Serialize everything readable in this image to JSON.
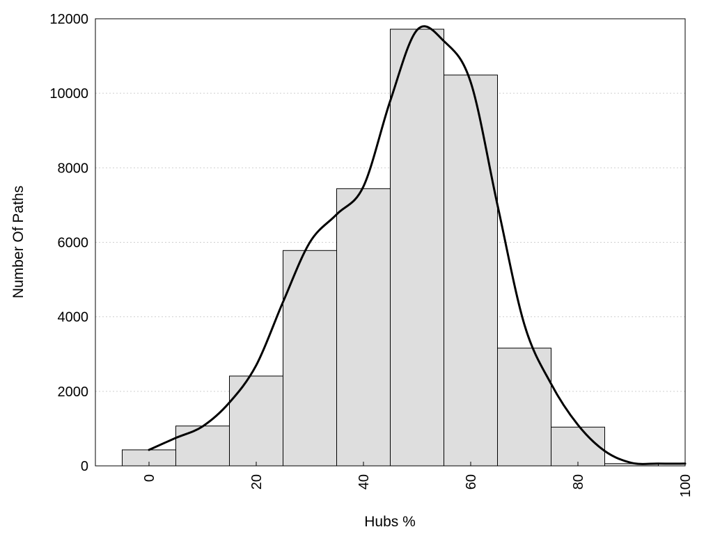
{
  "chart_data": {
    "type": "bar",
    "xlabel": "Hubs %",
    "ylabel": "Number Of Paths",
    "xlim": [
      -10,
      100
    ],
    "ylim": [
      0,
      12000
    ],
    "grid": true,
    "x_ticks": [
      0,
      20,
      40,
      60,
      80,
      100
    ],
    "y_ticks": [
      0,
      2000,
      4000,
      6000,
      8000,
      10000,
      12000
    ],
    "bin_width": 10,
    "bars": [
      {
        "x": 0,
        "value": 430
      },
      {
        "x": 10,
        "value": 1070
      },
      {
        "x": 20,
        "value": 2410
      },
      {
        "x": 30,
        "value": 5780
      },
      {
        "x": 40,
        "value": 7440
      },
      {
        "x": 50,
        "value": 11720
      },
      {
        "x": 60,
        "value": 10490
      },
      {
        "x": 70,
        "value": 3160
      },
      {
        "x": 80,
        "value": 1040
      },
      {
        "x": 90,
        "value": 60
      }
    ],
    "density_curve": {
      "x": [
        0,
        5,
        10,
        15,
        20,
        25,
        30,
        35,
        40,
        45,
        50,
        55,
        60,
        65,
        70,
        75,
        80,
        85,
        90,
        95,
        100
      ],
      "y": [
        430,
        750,
        1060,
        1700,
        2700,
        4400,
        6000,
        6750,
        7500,
        9800,
        11700,
        11400,
        10300,
        7000,
        3800,
        2200,
        1100,
        400,
        80,
        60,
        60
      ]
    }
  }
}
